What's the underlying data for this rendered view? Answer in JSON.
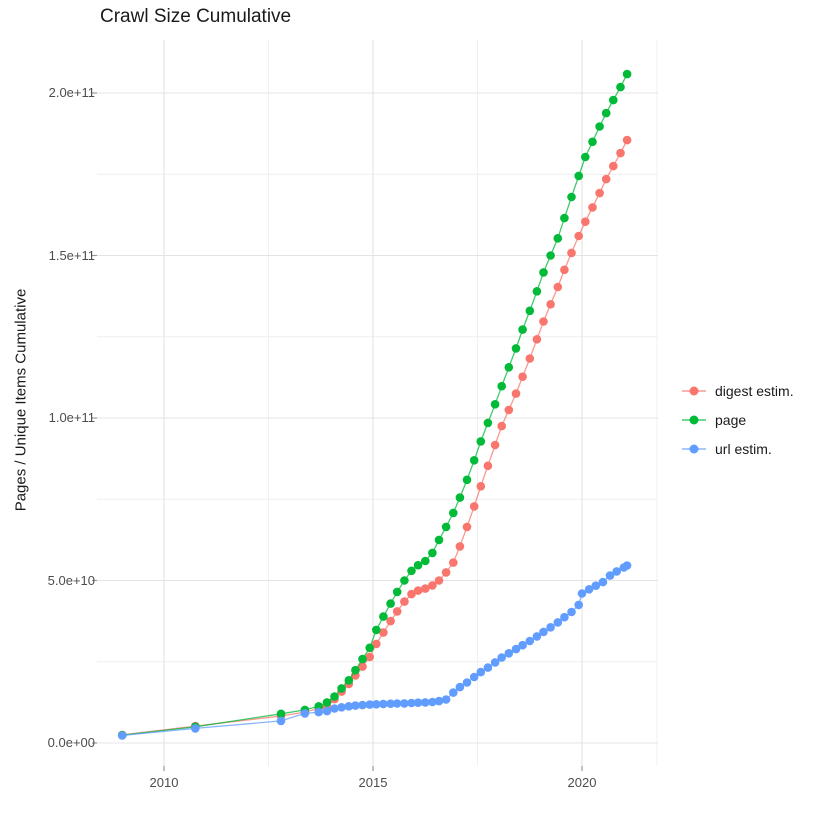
{
  "title": "Crawl Size Cumulative",
  "y_axis": {
    "title": "Pages / Unique Items Cumulative",
    "tick_labels": [
      "2.0e+11",
      "1.5e+11",
      "1.0e+11",
      "5.0e+10",
      "0.0e+00"
    ]
  },
  "x_axis": {
    "tick_labels": [
      "2010",
      "2015",
      "2020"
    ]
  },
  "legend": {
    "items": [
      {
        "label": "digest estim.",
        "color": "#F8766D"
      },
      {
        "label": "page",
        "color": "#00BA38"
      },
      {
        "label": "url estim.",
        "color": "#619CFF"
      }
    ]
  },
  "colors": {
    "grid_major": "#E4E4E4",
    "grid_minor": "#EFEFEF",
    "tick_mark": "#999999",
    "tick_label": "#4d4d4d"
  },
  "chart_data": {
    "type": "line",
    "title": "Crawl Size Cumulative",
    "xlabel": "",
    "ylabel": "Pages / Unique Items Cumulative",
    "xlim": [
      2008.45,
      2021.75
    ],
    "ylim": [
      0,
      217000000000.0
    ],
    "x_ticks": [
      2010,
      2015,
      2020
    ],
    "x_minor_ticks": [
      2012.5,
      2017.5,
      2022.5
    ],
    "y_ticks": [
      0,
      50000000000.0,
      100000000000.0,
      150000000000.0,
      200000000000.0
    ],
    "y_minor_ticks": [
      25000000000.0,
      75000000000.0,
      125000000000.0,
      175000000000.0
    ],
    "grid": true,
    "legend_position": "right",
    "markers": true,
    "series": [
      {
        "name": "digest estim.",
        "color": "#F8766D",
        "points": [
          [
            2009.0,
            2500000000.0
          ],
          [
            2010.75,
            5200000000.0
          ],
          [
            2012.8,
            8300000000.0
          ],
          [
            2013.37,
            9500000000.0
          ],
          [
            2013.7,
            10600000000.0
          ],
          [
            2013.9,
            11200000000.0
          ],
          [
            2014.08,
            13500000000.0
          ],
          [
            2014.25,
            15800000000.0
          ],
          [
            2014.42,
            18200000000.0
          ],
          [
            2014.58,
            20800000000.0
          ],
          [
            2014.75,
            23500000000.0
          ],
          [
            2014.92,
            26500000000.0
          ],
          [
            2015.08,
            30500000000.0
          ],
          [
            2015.25,
            34000000000.0
          ],
          [
            2015.42,
            37500000000.0
          ],
          [
            2015.58,
            40500000000.0
          ],
          [
            2015.75,
            43500000000.0
          ],
          [
            2015.92,
            45800000000.0
          ],
          [
            2016.08,
            46900000000.0
          ],
          [
            2016.25,
            47500000000.0
          ],
          [
            2016.42,
            48500000000.0
          ],
          [
            2016.58,
            50000000000.0
          ],
          [
            2016.75,
            52500000000.0
          ],
          [
            2016.92,
            55500000000.0
          ],
          [
            2017.08,
            60500000000.0
          ],
          [
            2017.25,
            66500000000.0
          ],
          [
            2017.42,
            72800000000.0
          ],
          [
            2017.58,
            79000000000.0
          ],
          [
            2017.75,
            85300000000.0
          ],
          [
            2017.92,
            91700000000.0
          ],
          [
            2018.08,
            97500000000.0
          ],
          [
            2018.25,
            102500000000.0
          ],
          [
            2018.42,
            107500000000.0
          ],
          [
            2018.58,
            112700000000.0
          ],
          [
            2018.75,
            118300000000.0
          ],
          [
            2018.92,
            124200000000.0
          ],
          [
            2019.08,
            129700000000.0
          ],
          [
            2019.25,
            135000000000.0
          ],
          [
            2019.42,
            140300000000.0
          ],
          [
            2019.58,
            145600000000.0
          ],
          [
            2019.75,
            150800000000.0
          ],
          [
            2019.92,
            156000000000.0
          ],
          [
            2020.08,
            160400000000.0
          ],
          [
            2020.25,
            164800000000.0
          ],
          [
            2020.42,
            169200000000.0
          ],
          [
            2020.58,
            173500000000.0
          ],
          [
            2020.75,
            177500000000.0
          ],
          [
            2020.92,
            181500000000.0
          ],
          [
            2021.08,
            185500000000.0
          ]
        ]
      },
      {
        "name": "page",
        "color": "#00BA38",
        "points": [
          [
            2009.0,
            2400000000.0
          ],
          [
            2010.75,
            5000000000.0
          ],
          [
            2012.8,
            9000000000.0
          ],
          [
            2013.37,
            10200000000.0
          ],
          [
            2013.7,
            11300000000.0
          ],
          [
            2013.9,
            12500000000.0
          ],
          [
            2014.08,
            14300000000.0
          ],
          [
            2014.25,
            16800000000.0
          ],
          [
            2014.42,
            19300000000.0
          ],
          [
            2014.58,
            22400000000.0
          ],
          [
            2014.75,
            25800000000.0
          ],
          [
            2014.92,
            29300000000.0
          ],
          [
            2015.08,
            34800000000.0
          ],
          [
            2015.25,
            38900000000.0
          ],
          [
            2015.42,
            42900000000.0
          ],
          [
            2015.58,
            46500000000.0
          ],
          [
            2015.75,
            50000000000.0
          ],
          [
            2015.92,
            53000000000.0
          ],
          [
            2016.08,
            54700000000.0
          ],
          [
            2016.25,
            56000000000.0
          ],
          [
            2016.42,
            58500000000.0
          ],
          [
            2016.58,
            62500000000.0
          ],
          [
            2016.75,
            66500000000.0
          ],
          [
            2016.92,
            70800000000.0
          ],
          [
            2017.08,
            75500000000.0
          ],
          [
            2017.25,
            81000000000.0
          ],
          [
            2017.42,
            87000000000.0
          ],
          [
            2017.58,
            92800000000.0
          ],
          [
            2017.75,
            98500000000.0
          ],
          [
            2017.92,
            104200000000.0
          ],
          [
            2018.08,
            109800000000.0
          ],
          [
            2018.25,
            115600000000.0
          ],
          [
            2018.42,
            121400000000.0
          ],
          [
            2018.58,
            127200000000.0
          ],
          [
            2018.75,
            133000000000.0
          ],
          [
            2018.92,
            139000000000.0
          ],
          [
            2019.08,
            144800000000.0
          ],
          [
            2019.25,
            150000000000.0
          ],
          [
            2019.42,
            155300000000.0
          ],
          [
            2019.58,
            161500000000.0
          ],
          [
            2019.75,
            168000000000.0
          ],
          [
            2019.92,
            174500000000.0
          ],
          [
            2020.08,
            180300000000.0
          ],
          [
            2020.25,
            185000000000.0
          ],
          [
            2020.42,
            189700000000.0
          ],
          [
            2020.58,
            193800000000.0
          ],
          [
            2020.75,
            197800000000.0
          ],
          [
            2020.92,
            201800000000.0
          ],
          [
            2021.08,
            205800000000.0
          ]
        ]
      },
      {
        "name": "url estim.",
        "color": "#619CFF",
        "points": [
          [
            2009.0,
            2300000000.0
          ],
          [
            2010.75,
            4500000000.0
          ],
          [
            2012.8,
            6800000000.0
          ],
          [
            2013.37,
            9100000000.0
          ],
          [
            2013.7,
            9500000000.0
          ],
          [
            2013.9,
            9800000000.0
          ],
          [
            2014.08,
            10600000000.0
          ],
          [
            2014.25,
            11000000000.0
          ],
          [
            2014.42,
            11300000000.0
          ],
          [
            2014.58,
            11500000000.0
          ],
          [
            2014.75,
            11650000000.0
          ],
          [
            2014.92,
            11800000000.0
          ],
          [
            2015.08,
            11900000000.0
          ],
          [
            2015.25,
            12000000000.0
          ],
          [
            2015.42,
            12100000000.0
          ],
          [
            2015.58,
            12150000000.0
          ],
          [
            2015.75,
            12200000000.0
          ],
          [
            2015.92,
            12300000000.0
          ],
          [
            2016.08,
            12400000000.0
          ],
          [
            2016.25,
            12500000000.0
          ],
          [
            2016.42,
            12600000000.0
          ],
          [
            2016.58,
            12900000000.0
          ],
          [
            2016.75,
            13400000000.0
          ],
          [
            2016.92,
            15500000000.0
          ],
          [
            2017.08,
            17200000000.0
          ],
          [
            2017.25,
            18600000000.0
          ],
          [
            2017.42,
            20300000000.0
          ],
          [
            2017.58,
            21800000000.0
          ],
          [
            2017.75,
            23200000000.0
          ],
          [
            2017.92,
            24800000000.0
          ],
          [
            2018.08,
            26300000000.0
          ],
          [
            2018.25,
            27600000000.0
          ],
          [
            2018.42,
            28900000000.0
          ],
          [
            2018.58,
            30100000000.0
          ],
          [
            2018.75,
            31400000000.0
          ],
          [
            2018.92,
            32800000000.0
          ],
          [
            2019.08,
            34200000000.0
          ],
          [
            2019.25,
            35600000000.0
          ],
          [
            2019.42,
            37100000000.0
          ],
          [
            2019.58,
            38700000000.0
          ],
          [
            2019.75,
            40300000000.0
          ],
          [
            2019.92,
            42500000000.0
          ],
          [
            2020.0,
            46000000000.0
          ],
          [
            2020.17,
            47300000000.0
          ],
          [
            2020.33,
            48400000000.0
          ],
          [
            2020.5,
            49500000000.0
          ],
          [
            2020.67,
            51500000000.0
          ],
          [
            2020.83,
            52800000000.0
          ],
          [
            2021.0,
            54000000000.0
          ],
          [
            2021.08,
            54600000000.0
          ]
        ]
      }
    ]
  }
}
